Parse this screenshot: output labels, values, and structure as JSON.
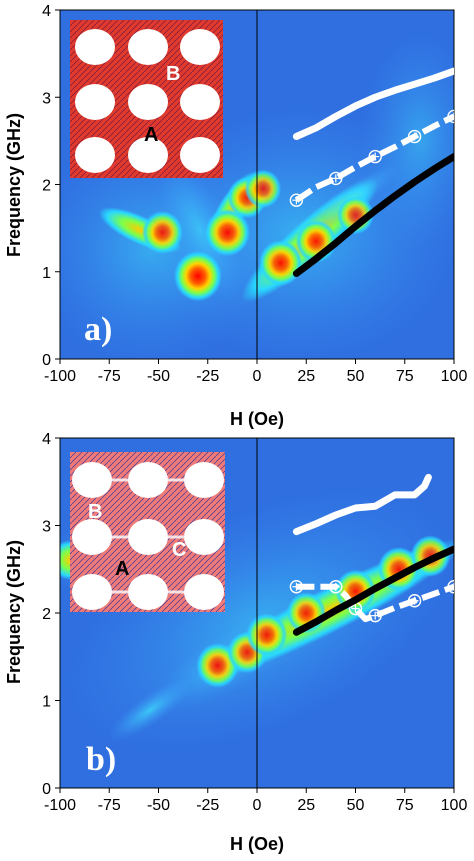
{
  "chart_data": [
    {
      "type": "heatmap",
      "panel_label": "a)",
      "xlabel": "H (Oe)",
      "ylabel": "Frequency (GHz)",
      "xlim": [
        -100,
        100
      ],
      "ylim": [
        0,
        4
      ],
      "xticks": [
        "-100",
        "-75",
        "-50",
        "-25",
        "0",
        "25",
        "50",
        "75",
        "100"
      ],
      "yticks": [
        "0",
        "1",
        "2",
        "3",
        "4"
      ],
      "inset_labels": [
        "B",
        "A"
      ],
      "hotspots": [
        {
          "x": -30,
          "y": 0.95,
          "intensity": 1.0
        },
        {
          "x": -15,
          "y": 1.45,
          "intensity": 0.9
        },
        {
          "x": -48,
          "y": 1.45,
          "intensity": 0.75
        },
        {
          "x": -5,
          "y": 1.85,
          "intensity": 0.7
        },
        {
          "x": 3,
          "y": 1.95,
          "intensity": 0.6
        },
        {
          "x": 12,
          "y": 1.1,
          "intensity": 0.85
        },
        {
          "x": 30,
          "y": 1.35,
          "intensity": 0.75
        },
        {
          "x": 50,
          "y": 1.65,
          "intensity": 0.6
        }
      ],
      "series": [
        {
          "style": "white-solid",
          "x": [
            20,
            30,
            40,
            50,
            60,
            70,
            80,
            90,
            100
          ],
          "y": [
            2.55,
            2.65,
            2.78,
            2.9,
            3.0,
            3.08,
            3.15,
            3.22,
            3.3
          ]
        },
        {
          "style": "white-dashed-circles",
          "x": [
            20,
            30,
            40,
            50,
            60,
            70,
            80,
            90,
            100
          ],
          "y": [
            1.82,
            1.97,
            2.07,
            2.2,
            2.32,
            2.43,
            2.55,
            2.67,
            2.78
          ]
        },
        {
          "style": "black-solid",
          "x": [
            20,
            30,
            40,
            50,
            60,
            70,
            80,
            90,
            100
          ],
          "y": [
            0.98,
            1.15,
            1.33,
            1.52,
            1.7,
            1.87,
            2.03,
            2.18,
            2.32
          ]
        }
      ]
    },
    {
      "type": "heatmap",
      "panel_label": "b)",
      "xlabel": "H (Oe)",
      "ylabel": "Frequency (GHz)",
      "xlim": [
        -100,
        100
      ],
      "ylim": [
        0,
        4
      ],
      "xticks": [
        "-100",
        "-75",
        "-50",
        "-25",
        "0",
        "25",
        "50",
        "75",
        "100"
      ],
      "yticks": [
        "0",
        "1",
        "2",
        "3",
        "4"
      ],
      "inset_labels": [
        "B",
        "C",
        "A"
      ],
      "hotspots": [
        {
          "x": -20,
          "y": 1.4,
          "intensity": 0.8
        },
        {
          "x": -5,
          "y": 1.55,
          "intensity": 0.7
        },
        {
          "x": 5,
          "y": 1.75,
          "intensity": 0.75
        },
        {
          "x": 25,
          "y": 2.0,
          "intensity": 0.7
        },
        {
          "x": 50,
          "y": 2.25,
          "intensity": 0.75
        },
        {
          "x": 72,
          "y": 2.5,
          "intensity": 0.8
        },
        {
          "x": 88,
          "y": 2.65,
          "intensity": 0.7
        }
      ],
      "series": [
        {
          "style": "white-solid",
          "x": [
            20,
            30,
            40,
            50,
            60,
            70,
            80,
            85,
            87
          ],
          "y": [
            2.93,
            3.02,
            3.12,
            3.2,
            3.22,
            3.35,
            3.35,
            3.45,
            3.55
          ]
        },
        {
          "style": "white-dashed-circles",
          "x": [
            20,
            30,
            40,
            45,
            50,
            55,
            60,
            70,
            80,
            90,
            100
          ],
          "y": [
            2.3,
            2.3,
            2.3,
            2.2,
            2.05,
            1.93,
            1.97,
            2.06,
            2.14,
            2.22,
            2.3
          ]
        },
        {
          "style": "black-solid",
          "x": [
            20,
            30,
            40,
            50,
            60,
            70,
            80,
            90,
            100
          ],
          "y": [
            1.78,
            1.9,
            2.03,
            2.15,
            2.28,
            2.4,
            2.52,
            2.63,
            2.73
          ]
        }
      ]
    }
  ]
}
